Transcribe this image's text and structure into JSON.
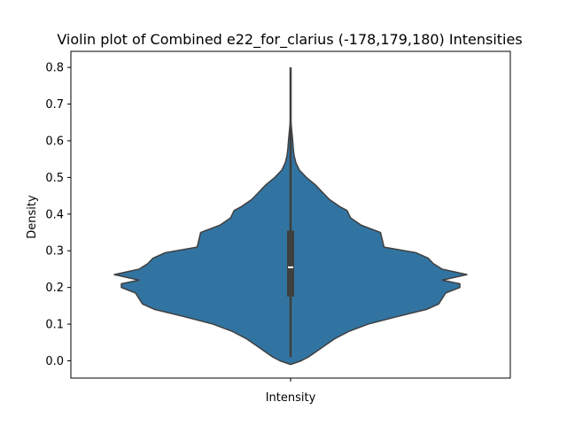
{
  "chart_data": {
    "type": "violin",
    "title": "Violin plot of Combined e22_for_clarius (-178,179,180) Intensities",
    "xlabel": "",
    "ylabel": "Density",
    "categories": [
      "Intensity"
    ],
    "ylim": [
      -0.01,
      0.8
    ],
    "yticks": [
      0.0,
      0.1,
      0.2,
      0.3,
      0.4,
      0.5,
      0.6,
      0.7,
      0.8
    ],
    "ytick_labels": [
      "0.0",
      "0.1",
      "0.2",
      "0.3",
      "0.4",
      "0.5",
      "0.6",
      "0.7",
      "0.8"
    ],
    "grid": false,
    "legend": "none",
    "series": [
      {
        "category": "Intensity",
        "color": "#3274a1",
        "edge_color": "#3f3f3f",
        "min": 0.01,
        "q1": 0.175,
        "median": 0.255,
        "q3": 0.355,
        "max": 0.8,
        "whisker_low": 0.01,
        "whisker_high": 0.8,
        "density_profile": [
          [
            -0.01,
            0.0
          ],
          [
            0.0,
            0.06
          ],
          [
            0.01,
            0.1
          ],
          [
            0.02,
            0.13
          ],
          [
            0.04,
            0.19
          ],
          [
            0.06,
            0.25
          ],
          [
            0.08,
            0.33
          ],
          [
            0.1,
            0.44
          ],
          [
            0.12,
            0.6
          ],
          [
            0.14,
            0.77
          ],
          [
            0.155,
            0.84
          ],
          [
            0.17,
            0.86
          ],
          [
            0.185,
            0.88
          ],
          [
            0.2,
            0.96
          ],
          [
            0.21,
            0.96
          ],
          [
            0.22,
            0.86
          ],
          [
            0.235,
            1.0
          ],
          [
            0.25,
            0.86
          ],
          [
            0.265,
            0.81
          ],
          [
            0.28,
            0.78
          ],
          [
            0.295,
            0.71
          ],
          [
            0.31,
            0.53
          ],
          [
            0.33,
            0.52
          ],
          [
            0.35,
            0.51
          ],
          [
            0.37,
            0.4
          ],
          [
            0.39,
            0.34
          ],
          [
            0.41,
            0.32
          ],
          [
            0.42,
            0.28
          ],
          [
            0.44,
            0.22
          ],
          [
            0.46,
            0.18
          ],
          [
            0.48,
            0.14
          ],
          [
            0.5,
            0.09
          ],
          [
            0.52,
            0.05
          ],
          [
            0.54,
            0.03
          ],
          [
            0.56,
            0.02
          ],
          [
            0.58,
            0.015
          ],
          [
            0.6,
            0.012
          ],
          [
            0.62,
            0.008
          ],
          [
            0.64,
            0.004
          ],
          [
            0.66,
            0.0
          ]
        ]
      }
    ]
  }
}
